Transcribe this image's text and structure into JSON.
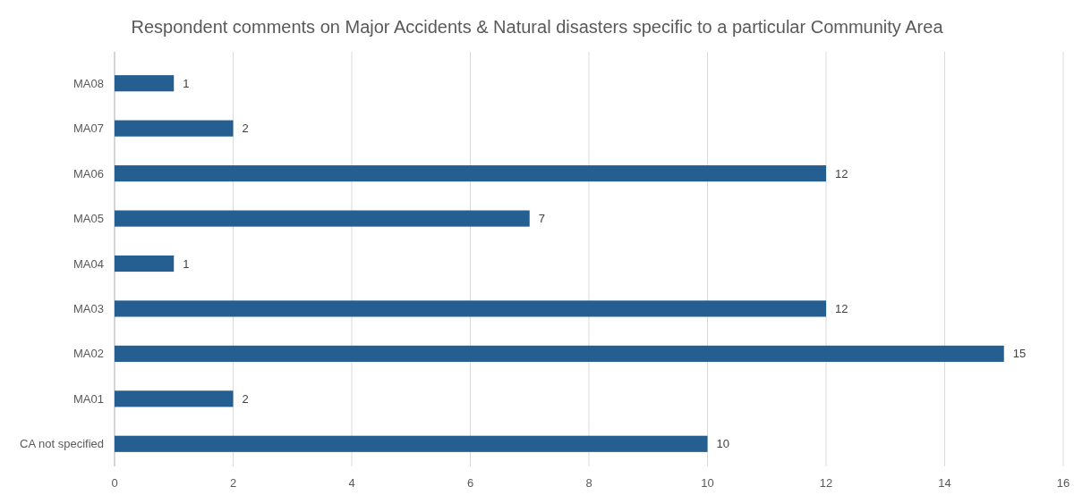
{
  "chart_data": {
    "type": "bar",
    "orientation": "horizontal",
    "title": "Respondent comments on Major Accidents & Natural disasters specific to a particular Community Area",
    "categories": [
      "MA08",
      "MA07",
      "MA06",
      "MA05",
      "MA04",
      "MA03",
      "MA02",
      "MA01",
      "CA not specified"
    ],
    "values": [
      1,
      2,
      12,
      7,
      1,
      12,
      15,
      2,
      10
    ],
    "color": "#255e91",
    "xlim": [
      0,
      16
    ],
    "xticks": [
      0,
      2,
      4,
      6,
      8,
      10,
      12,
      14,
      16
    ],
    "grid": "x",
    "data_labels": true
  }
}
